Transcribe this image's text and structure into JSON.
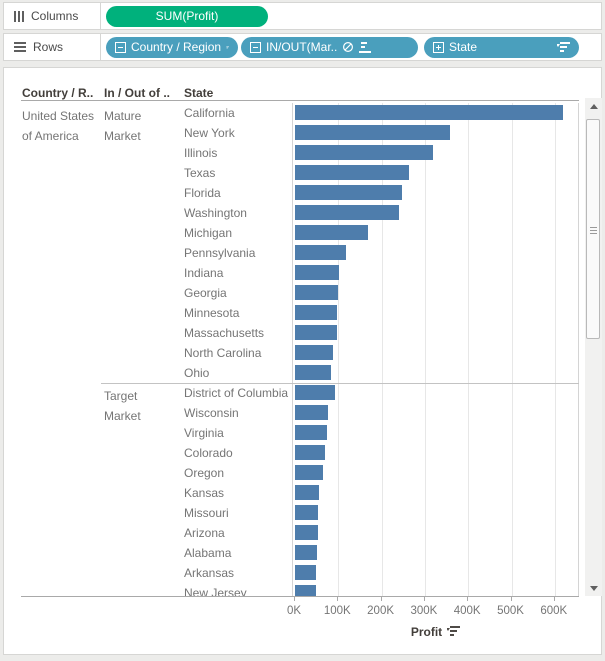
{
  "shelves": {
    "columns": {
      "label": "Columns",
      "pills": [
        {
          "label": "SUM(Profit)",
          "color": "#00b17c",
          "type": "measure"
        }
      ]
    },
    "rows": {
      "label": "Rows",
      "pills": [
        {
          "label": "Country / Region",
          "prefix_icon": "collapse-box",
          "suffix_icons": [
            "sort-descending"
          ],
          "color": "#4a9fbd"
        },
        {
          "label": "IN/OUT(Mar..",
          "prefix_icon": "collapse-box",
          "suffix_icons": [
            "no-symbol",
            "manual-sort"
          ],
          "color": "#4a9fbd"
        },
        {
          "label": "State",
          "prefix_icon": "expand-box",
          "suffix_icons": [
            "sort-descending"
          ],
          "color": "#4a9fbd"
        }
      ]
    }
  },
  "table": {
    "headers": {
      "country": "Country / R..",
      "market": "In / Out of ..",
      "state": "State"
    },
    "country_value": "United States of America"
  },
  "chart_data": {
    "type": "bar",
    "orientation": "horizontal",
    "bar_color": "#4e7dac",
    "xlabel": "Profit",
    "x_ticks": [
      "0K",
      "100K",
      "200K",
      "300K",
      "400K",
      "500K",
      "600K"
    ],
    "x_tick_values": [
      0,
      100000,
      200000,
      300000,
      400000,
      500000,
      600000
    ],
    "xlim": [
      0,
      663000
    ],
    "grid": true,
    "sort": "descending within market group",
    "groups": [
      {
        "market": "Mature Market",
        "states": [
          "California",
          "New York",
          "Illinois",
          "Texas",
          "Florida",
          "Washington",
          "Michigan",
          "Pennsylvania",
          "Indiana",
          "Georgia",
          "Minnesota",
          "Massachusetts",
          "North Carolina",
          "Ohio"
        ],
        "profits": [
          620000,
          357000,
          319000,
          264000,
          246000,
          240000,
          169000,
          117000,
          101000,
          100000,
          96000,
          96000,
          88000,
          84000
        ]
      },
      {
        "market": "Target Market",
        "states": [
          "District of Columbia",
          "Wisconsin",
          "Virginia",
          "Colorado",
          "Oregon",
          "Kansas",
          "Missouri",
          "Arizona",
          "Alabama",
          "Arkansas",
          "New Jersey"
        ],
        "profits": [
          93000,
          77000,
          75000,
          70000,
          65000,
          56000,
          54000,
          52000,
          51000,
          49000,
          48000
        ]
      }
    ]
  },
  "axis": {
    "title": "Profit"
  }
}
